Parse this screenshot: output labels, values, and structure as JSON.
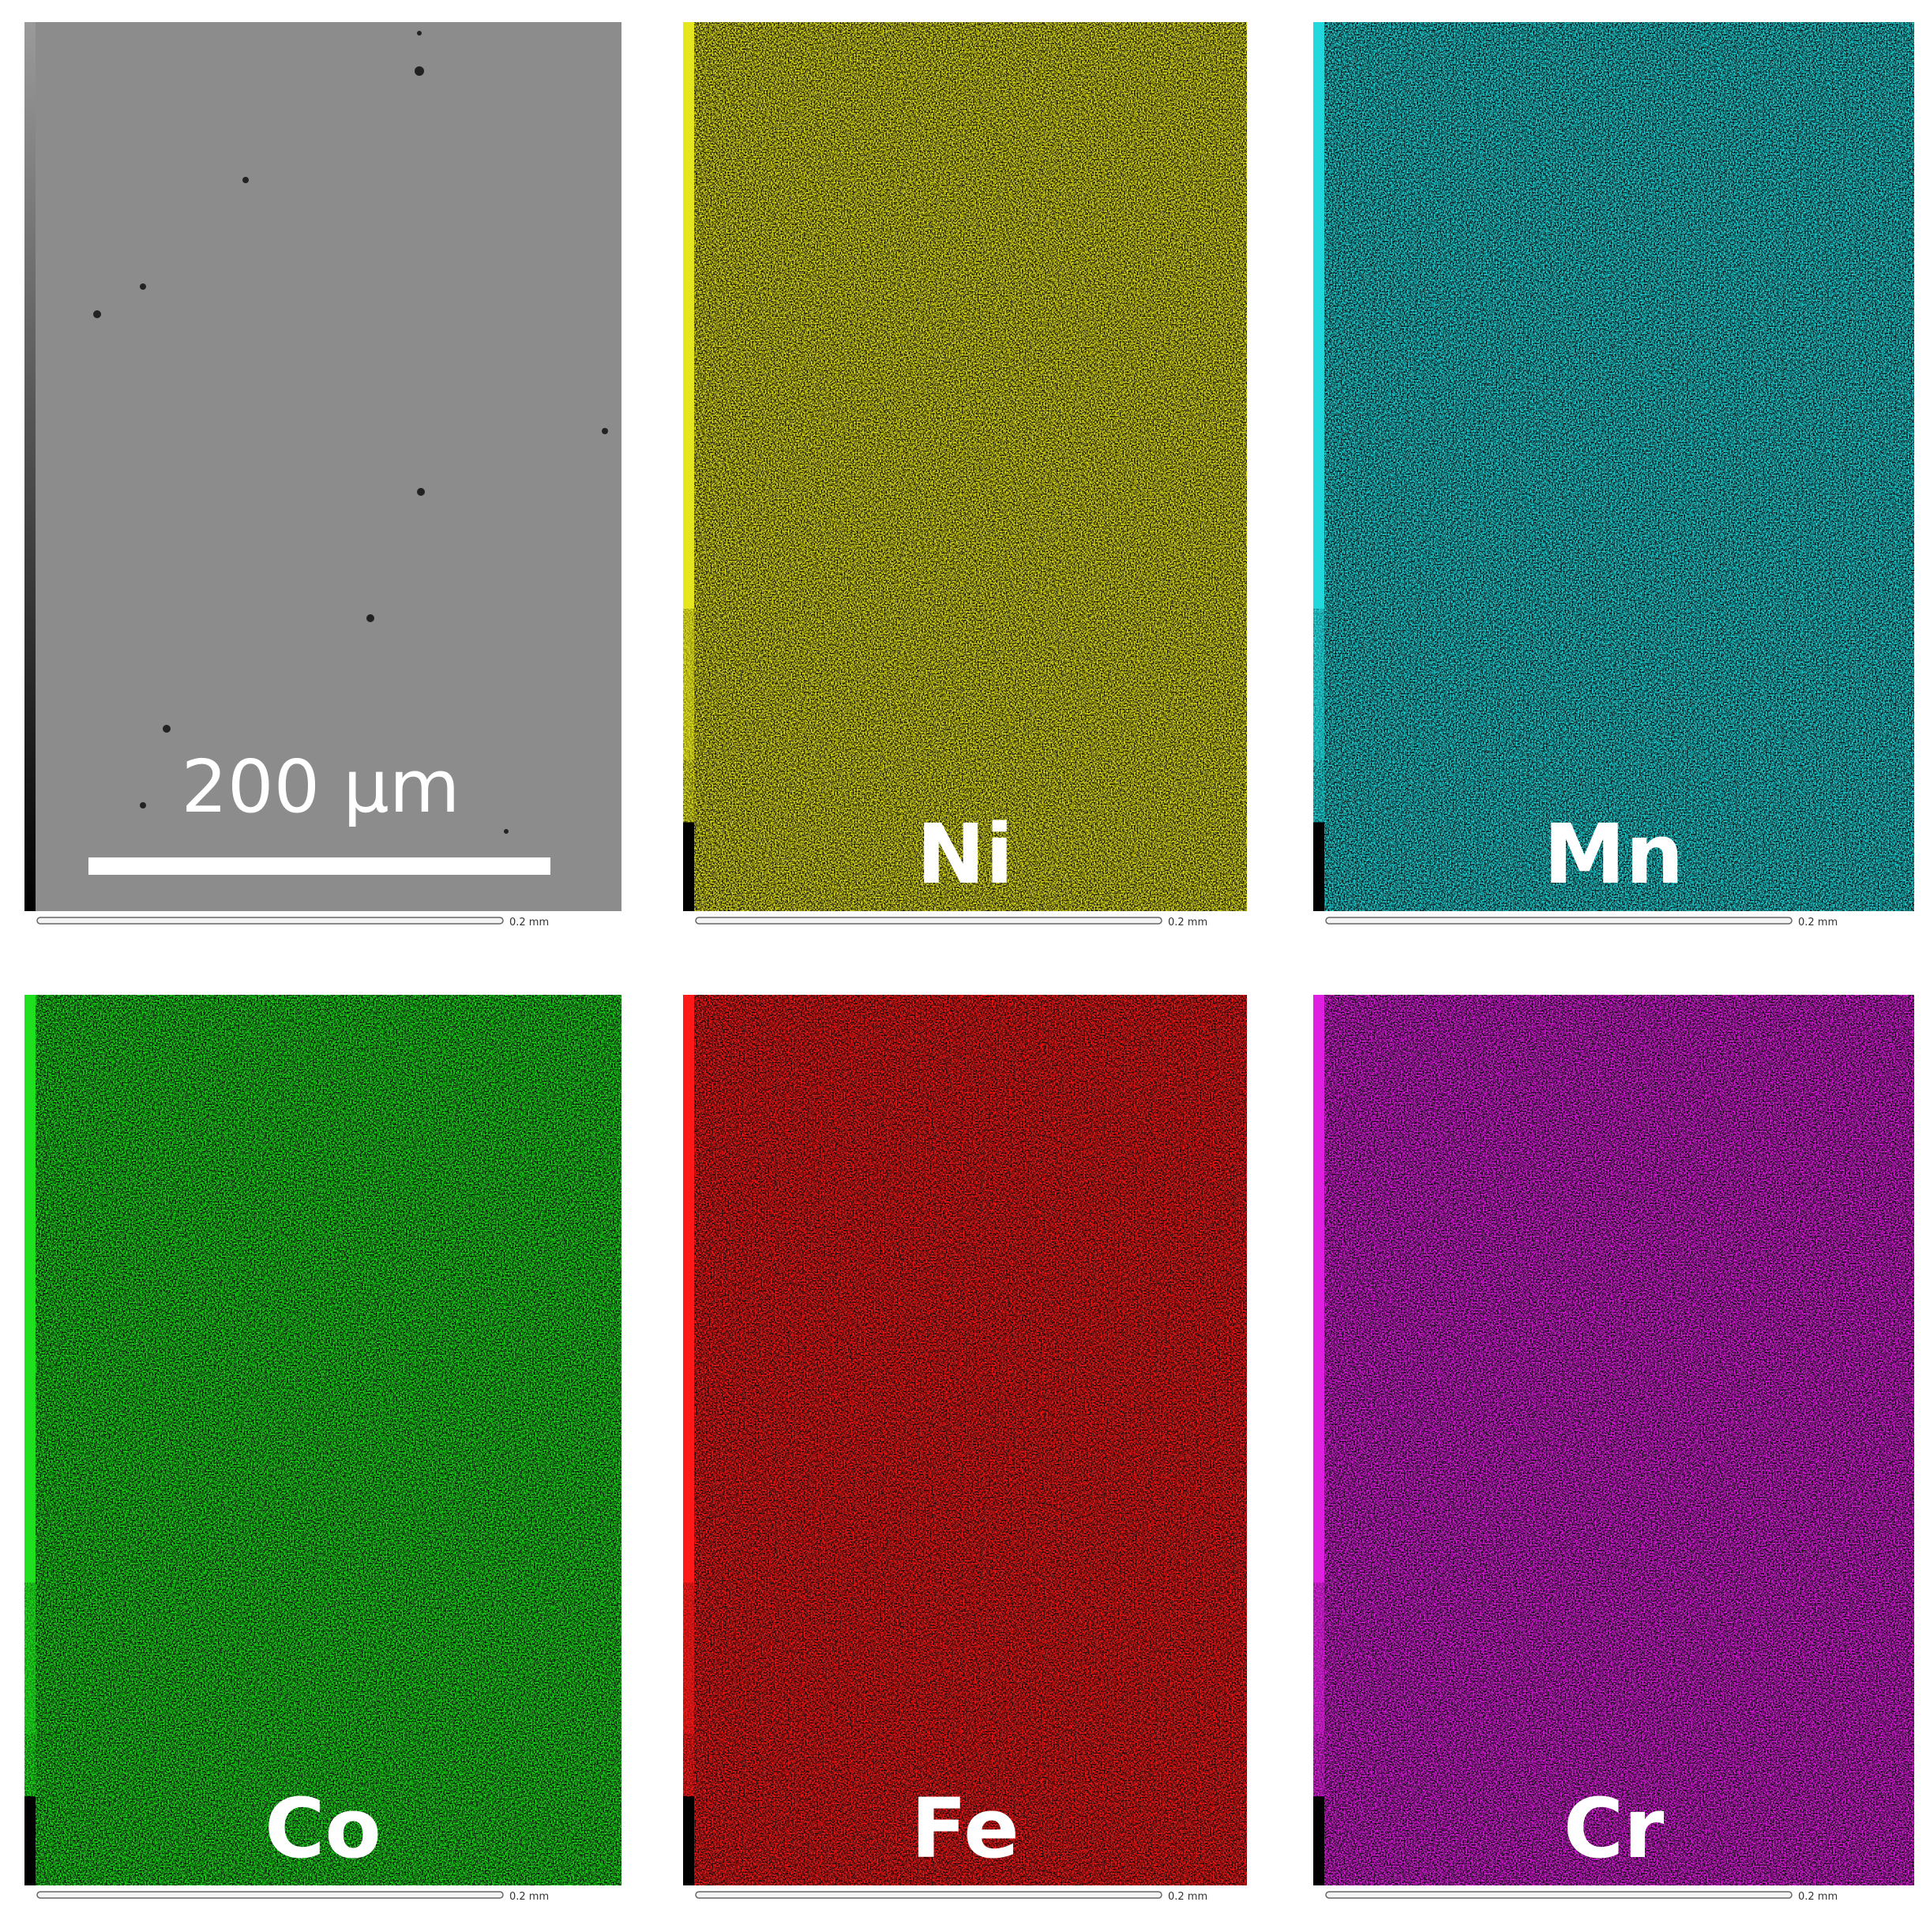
{
  "panels": [
    {
      "scale_bar": "200 µm",
      "color": "#8c8c8c",
      "scale": "0.2 mm"
    },
    {
      "label": "Ni",
      "color": "#e6e61e",
      "scale": "0.2 mm"
    },
    {
      "label": "Mn",
      "color": "#22d8dc",
      "scale": "0.2 mm"
    },
    {
      "label": "Co",
      "color": "#1ee01e",
      "scale": "0.2 mm"
    },
    {
      "label": "Fe",
      "color": "#ff1a1a",
      "scale": "0.2 mm"
    },
    {
      "label": "Cr",
      "color": "#e020e0",
      "scale": "0.2 mm"
    }
  ]
}
